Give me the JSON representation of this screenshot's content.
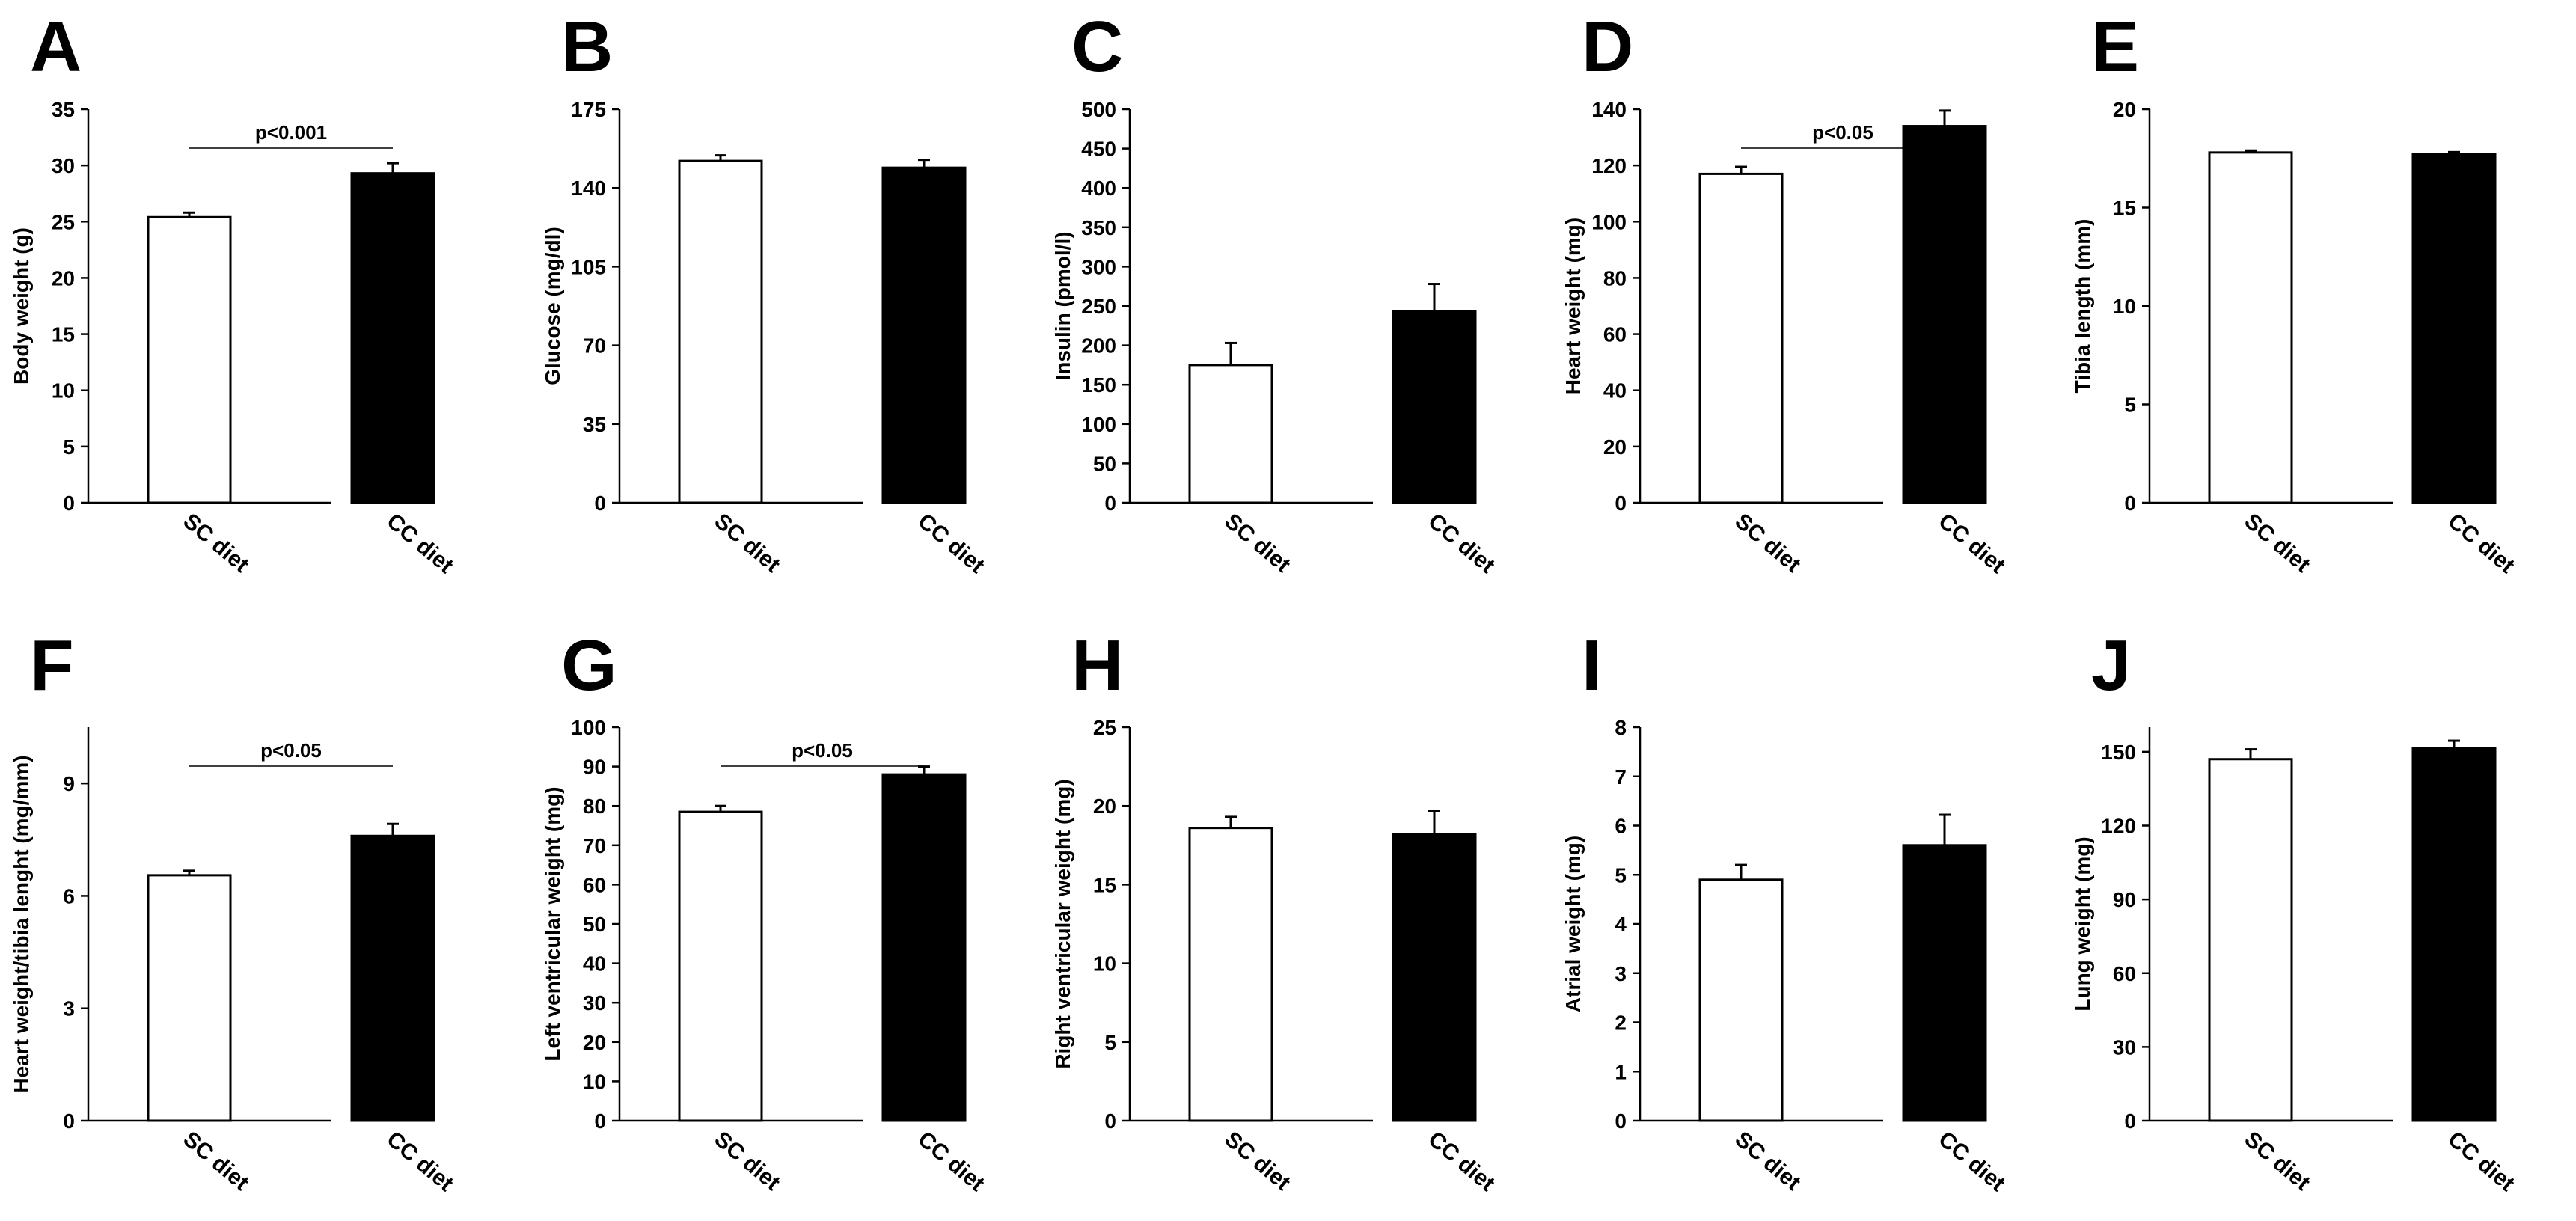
{
  "chart_data": [
    {
      "type": "bar",
      "letter": "A",
      "ylabel": "Body weight (g)",
      "ylim": [
        0,
        35
      ],
      "ticks": [
        0,
        5,
        10,
        15,
        20,
        25,
        30,
        35
      ],
      "categories": [
        "SC diet",
        "CC diet"
      ],
      "values": [
        25.4,
        29.3
      ],
      "errors": [
        0.4,
        0.9
      ],
      "colors": [
        "#ffffff",
        "#000000"
      ],
      "significance": "p<0.001"
    },
    {
      "type": "bar",
      "letter": "B",
      "ylabel": "Glucose (mg/dl)",
      "ylim": [
        0,
        175
      ],
      "ticks": [
        0,
        35,
        70,
        105,
        140,
        175
      ],
      "categories": [
        "SC diet",
        "CC diet"
      ],
      "values": [
        152,
        149
      ],
      "errors": [
        2.5,
        3.5
      ],
      "colors": [
        "#ffffff",
        "#000000"
      ],
      "significance": null
    },
    {
      "type": "bar",
      "letter": "C",
      "ylabel": "Insulin (pmol/l)",
      "ylim": [
        0,
        500
      ],
      "ticks": [
        0,
        50,
        100,
        150,
        200,
        250,
        300,
        350,
        400,
        450,
        500
      ],
      "categories": [
        "SC diet",
        "CC diet"
      ],
      "values": [
        175,
        243
      ],
      "errors": [
        28,
        35
      ],
      "colors": [
        "#ffffff",
        "#000000"
      ],
      "significance": null
    },
    {
      "type": "bar",
      "letter": "D",
      "ylabel": "Heart weight (mg)",
      "ylim": [
        0,
        140
      ],
      "ticks": [
        0,
        20,
        40,
        60,
        80,
        100,
        120,
        140
      ],
      "categories": [
        "SC diet",
        "CC diet"
      ],
      "values": [
        117,
        134
      ],
      "errors": [
        2.5,
        5.5
      ],
      "colors": [
        "#ffffff",
        "#000000"
      ],
      "significance": "p<0.05"
    },
    {
      "type": "bar",
      "letter": "E",
      "ylabel": "Tibia length (mm)",
      "ylim": [
        0,
        20
      ],
      "ticks": [
        0,
        5,
        10,
        15,
        20
      ],
      "categories": [
        "SC diet",
        "CC diet"
      ],
      "values": [
        17.8,
        17.7
      ],
      "errors": [
        0.1,
        0.12
      ],
      "colors": [
        "#ffffff",
        "#000000"
      ],
      "significance": null
    },
    {
      "type": "bar",
      "letter": "F",
      "ylabel": "Heart weight/tibia lenght (mg/mm)",
      "ylim": [
        0,
        10.5
      ],
      "ticks": [
        0,
        3,
        6,
        9
      ],
      "categories": [
        "SC diet",
        "CC diet"
      ],
      "values": [
        6.55,
        7.6
      ],
      "errors": [
        0.12,
        0.32
      ],
      "colors": [
        "#ffffff",
        "#000000"
      ],
      "significance": "p<0.05"
    },
    {
      "type": "bar",
      "letter": "G",
      "ylabel": "Left ventricular weight (mg)",
      "ylim": [
        0,
        100
      ],
      "ticks": [
        0,
        10,
        20,
        30,
        40,
        50,
        60,
        70,
        80,
        90,
        100
      ],
      "categories": [
        "SC diet",
        "CC diet"
      ],
      "values": [
        78.5,
        88
      ],
      "errors": [
        1.5,
        2
      ],
      "colors": [
        "#ffffff",
        "#000000"
      ],
      "significance": "p<0.05"
    },
    {
      "type": "bar",
      "letter": "H",
      "ylabel": "Right ventricular weight (mg)",
      "ylim": [
        0,
        25
      ],
      "ticks": [
        0,
        5,
        10,
        15,
        20,
        25
      ],
      "categories": [
        "SC diet",
        "CC diet"
      ],
      "values": [
        18.6,
        18.2
      ],
      "errors": [
        0.7,
        1.5
      ],
      "colors": [
        "#ffffff",
        "#000000"
      ],
      "significance": null
    },
    {
      "type": "bar",
      "letter": "I",
      "ylabel": "Atrial weight (mg)",
      "ylim": [
        0,
        8
      ],
      "ticks": [
        0,
        1,
        2,
        3,
        4,
        5,
        6,
        7,
        8
      ],
      "categories": [
        "SC diet",
        "CC diet"
      ],
      "values": [
        4.9,
        5.6
      ],
      "errors": [
        0.3,
        0.62
      ],
      "colors": [
        "#ffffff",
        "#000000"
      ],
      "significance": null
    },
    {
      "type": "bar",
      "letter": "J",
      "ylabel": "Lung weight (mg)",
      "ylim": [
        0,
        160
      ],
      "ticks": [
        0,
        30,
        60,
        90,
        120,
        150
      ],
      "categories": [
        "SC diet",
        "CC diet"
      ],
      "values": [
        147,
        151.5
      ],
      "errors": [
        4,
        3
      ],
      "colors": [
        "#ffffff",
        "#000000"
      ],
      "significance": null
    }
  ]
}
